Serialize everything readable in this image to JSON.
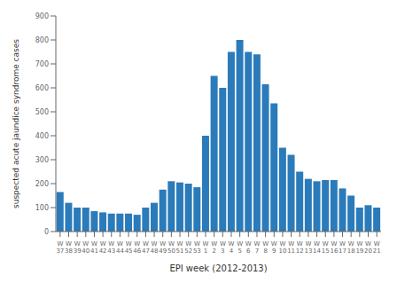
{
  "chart_data": {
    "type": "bar",
    "categories": [
      "W\n37",
      "W\n38",
      "W\n39",
      "W\n40",
      "W\n41",
      "W\n42",
      "W\n43",
      "W\n44",
      "W\n45",
      "W\n46",
      "W\n47",
      "W\n48",
      "W\n49",
      "W\n50",
      "W\n51",
      "W\n52",
      "W\n53",
      "W\n1",
      "W\n2",
      "W\n3",
      "W\n4",
      "W\n5",
      "W\n6",
      "W\n7",
      "W\n8",
      "W\n9",
      "W\n10",
      "W\n11",
      "W\n12",
      "W\n13",
      "W\n14",
      "W\n15",
      "W\n16",
      "W\n17",
      "W\n18",
      "W\n19",
      "W\n20",
      "W\n21"
    ],
    "values": [
      165,
      120,
      100,
      100,
      85,
      80,
      75,
      75,
      75,
      70,
      100,
      120,
      175,
      210,
      205,
      200,
      185,
      400,
      650,
      600,
      750,
      800,
      750,
      740,
      615,
      535,
      350,
      320,
      250,
      220,
      210,
      215,
      215,
      180,
      150,
      100,
      110,
      100
    ],
    "color": "#2b7bba",
    "xlabel": "EPI week (2012-2013)",
    "ylabel": "suspected acute jaundice syndrome cases",
    "ylim": [
      0,
      900
    ],
    "yticks": [
      0,
      100,
      200,
      300,
      400,
      500,
      600,
      700,
      800,
      900
    ],
    "grid": false
  }
}
